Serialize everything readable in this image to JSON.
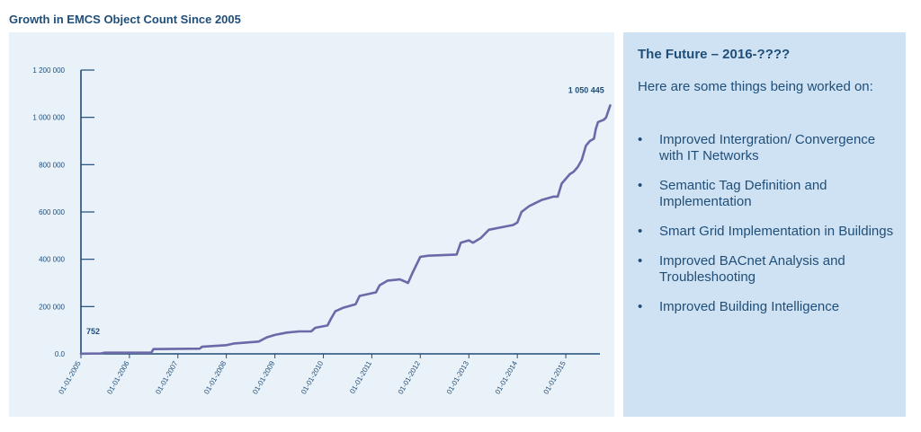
{
  "title": "Growth in EMCS Object Count Since 2005",
  "info": {
    "heading": "The Future – 2016-????",
    "intro": "Here are some things being worked on:",
    "bullet_glyph": "•",
    "items": [
      "Improved Intergration/ Convergence with IT Networks",
      "Semantic Tag Definition and Implementation",
      "Smart Grid Implementation in Buildings",
      "Improved BACnet Analysis and Troubleshooting",
      "Improved Building Intelligence"
    ]
  },
  "colors": {
    "line": "#6b6aa8",
    "axis": "#1f4e79",
    "chart_bg": "#e9f1f9",
    "panel_bg": "#cfe2f3",
    "text": "#1f4e79"
  },
  "chart_data": {
    "type": "line",
    "title": "Growth in EMCS Object Count Since 2005",
    "xlabel": "",
    "ylabel": "",
    "x_axis_type": "date",
    "xlim": [
      "2005-01-01",
      "2015-09-15"
    ],
    "ylim": [
      0,
      1200000
    ],
    "grid": false,
    "y_ticks": [
      0,
      200000,
      400000,
      600000,
      800000,
      1000000,
      1200000
    ],
    "y_tick_labels": [
      "0.0",
      "200 000",
      "400 000",
      "600 000",
      "800 000",
      "1 000 000",
      "1 200 000"
    ],
    "x_ticks": [
      "2005-01-01",
      "2006-01-01",
      "2007-01-01",
      "2008-01-01",
      "2009-01-01",
      "2010-01-01",
      "2011-01-01",
      "2012-01-01",
      "2013-01-01",
      "2014-01-01",
      "2015-01-01"
    ],
    "x_tick_labels": [
      "01-01-2005",
      "01-01-2006",
      "01-01-2007",
      "01-01-2008",
      "01-01-2009",
      "01-01-2010",
      "01-01-2011",
      "01-01-2012",
      "01-01-2013",
      "01-01-2014",
      "01-01-2015"
    ],
    "annotations": [
      {
        "text": "752",
        "x": "2005-01-01",
        "y": 752
      },
      {
        "text": "1 050 445",
        "x": "2015-07-01",
        "y": 1050445
      }
    ],
    "series": [
      {
        "values": [
          {
            "x": "2005-01-01",
            "y": 752
          },
          {
            "x": "2005-06-01",
            "y": 2000
          },
          {
            "x": "2005-07-01",
            "y": 5000
          },
          {
            "x": "2006-06-15",
            "y": 5000
          },
          {
            "x": "2006-07-01",
            "y": 20000
          },
          {
            "x": "2007-06-15",
            "y": 22000
          },
          {
            "x": "2007-07-01",
            "y": 30000
          },
          {
            "x": "2008-01-01",
            "y": 37000
          },
          {
            "x": "2008-03-01",
            "y": 44000
          },
          {
            "x": "2008-09-01",
            "y": 52000
          },
          {
            "x": "2008-11-01",
            "y": 70000
          },
          {
            "x": "2009-01-01",
            "y": 80000
          },
          {
            "x": "2009-04-01",
            "y": 90000
          },
          {
            "x": "2009-07-01",
            "y": 95000
          },
          {
            "x": "2009-10-01",
            "y": 95000
          },
          {
            "x": "2009-11-01",
            "y": 110000
          },
          {
            "x": "2010-02-01",
            "y": 120000
          },
          {
            "x": "2010-03-01",
            "y": 150000
          },
          {
            "x": "2010-04-01",
            "y": 180000
          },
          {
            "x": "2010-06-01",
            "y": 195000
          },
          {
            "x": "2010-09-01",
            "y": 210000
          },
          {
            "x": "2010-10-01",
            "y": 245000
          },
          {
            "x": "2011-02-01",
            "y": 260000
          },
          {
            "x": "2011-03-01",
            "y": 290000
          },
          {
            "x": "2011-05-01",
            "y": 310000
          },
          {
            "x": "2011-08-01",
            "y": 315000
          },
          {
            "x": "2011-10-01",
            "y": 300000
          },
          {
            "x": "2011-11-01",
            "y": 340000
          },
          {
            "x": "2012-01-01",
            "y": 410000
          },
          {
            "x": "2012-03-01",
            "y": 415000
          },
          {
            "x": "2012-10-01",
            "y": 420000
          },
          {
            "x": "2012-11-01",
            "y": 470000
          },
          {
            "x": "2013-01-01",
            "y": 480000
          },
          {
            "x": "2013-02-01",
            "y": 470000
          },
          {
            "x": "2013-04-01",
            "y": 490000
          },
          {
            "x": "2013-06-01",
            "y": 525000
          },
          {
            "x": "2013-09-01",
            "y": 535000
          },
          {
            "x": "2013-12-01",
            "y": 545000
          },
          {
            "x": "2014-01-01",
            "y": 555000
          },
          {
            "x": "2014-02-01",
            "y": 600000
          },
          {
            "x": "2014-04-01",
            "y": 625000
          },
          {
            "x": "2014-07-01",
            "y": 650000
          },
          {
            "x": "2014-10-01",
            "y": 665000
          },
          {
            "x": "2014-11-01",
            "y": 665000
          },
          {
            "x": "2014-12-01",
            "y": 720000
          },
          {
            "x": "2015-02-01",
            "y": 760000
          },
          {
            "x": "2015-03-01",
            "y": 770000
          },
          {
            "x": "2015-04-01",
            "y": 790000
          },
          {
            "x": "2015-05-01",
            "y": 820000
          },
          {
            "x": "2015-06-01",
            "y": 880000
          },
          {
            "x": "2015-07-01",
            "y": 900000
          },
          {
            "x": "2015-08-01",
            "y": 910000
          },
          {
            "x": "2015-08-15",
            "y": 950000
          },
          {
            "x": "2015-09-01",
            "y": 980000
          },
          {
            "x": "2015-10-15",
            "y": 990000
          },
          {
            "x": "2015-11-01",
            "y": 1000000
          },
          {
            "x": "2015-12-01",
            "y": 1050445
          }
        ]
      }
    ]
  }
}
